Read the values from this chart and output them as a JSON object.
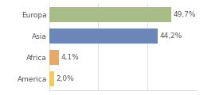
{
  "categories": [
    "America",
    "Africa",
    "Asia",
    "Europa"
  ],
  "values": [
    2.0,
    4.1,
    44.2,
    49.7
  ],
  "labels": [
    "2,0%",
    "4,1%",
    "44,2%",
    "49,7%"
  ],
  "bar_colors": [
    "#f0cc60",
    "#e8a868",
    "#6b87b8",
    "#a8bc88"
  ],
  "background_color": "#ffffff",
  "xlim": [
    0,
    60
  ],
  "label_fontsize": 6.5,
  "tick_fontsize": 6.5,
  "grid_color": "#dddddd"
}
